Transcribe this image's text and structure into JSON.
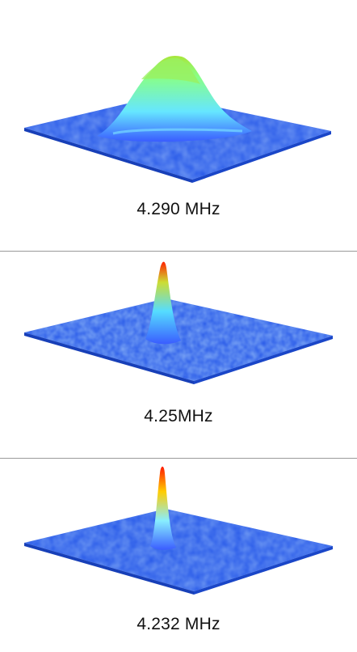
{
  "panels": [
    {
      "label": "4.290 MHz",
      "peak_colors": [
        "#3a5cff",
        "#66e6ff",
        "#88ff88",
        "#a8e63a"
      ],
      "surface_color": "#2a5cf0"
    },
    {
      "label": "4.25MHz",
      "peak_colors": [
        "#3a5cff",
        "#55ddff",
        "#ccdd33",
        "#ff2200"
      ],
      "surface_color": "#2a5cf0"
    },
    {
      "label": "4.232 MHz",
      "peak_colors": [
        "#3a5cff",
        "#88eeff",
        "#ffcc00",
        "#ff1a00"
      ],
      "surface_color": "#2a5cf0"
    }
  ]
}
